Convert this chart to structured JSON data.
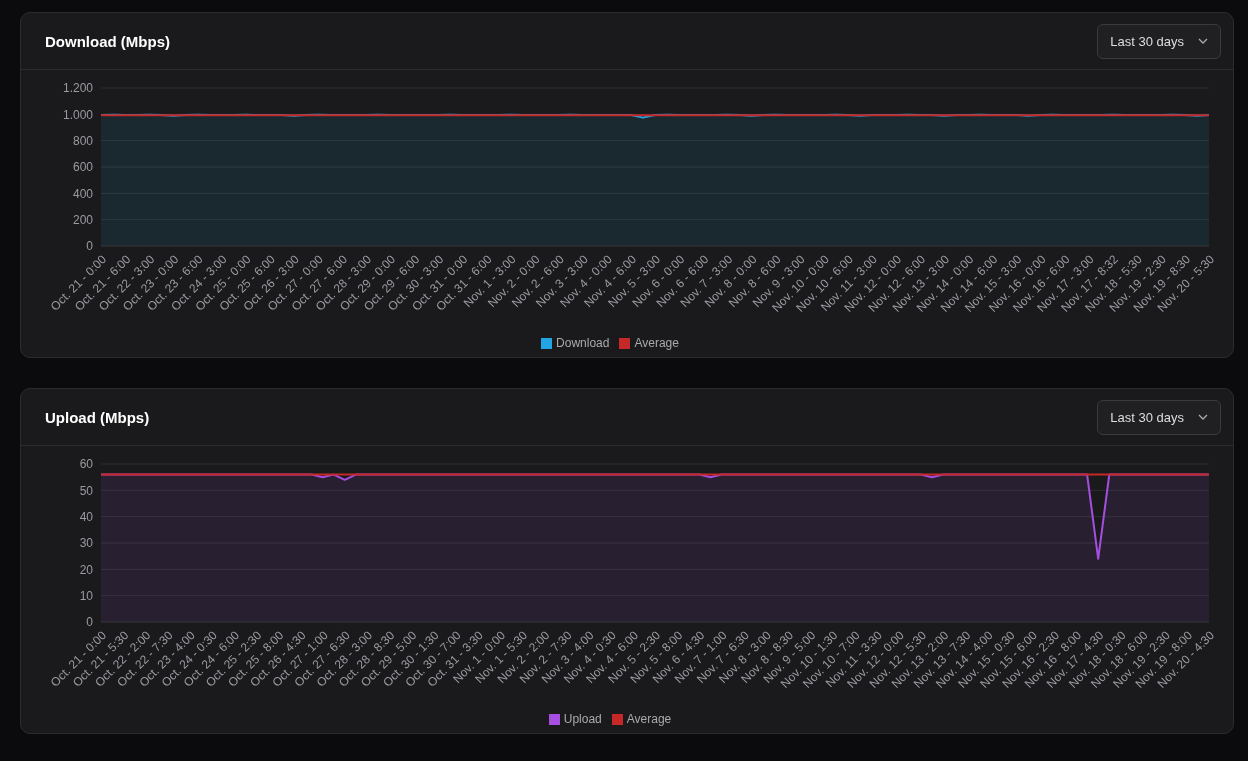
{
  "chart_data": [
    {
      "type": "line",
      "title": "Download (Mbps)",
      "annotations": [
        "Last 30 days"
      ],
      "categories": [
        "Oct. 21 - 0:00",
        null,
        "Oct. 21 - 6:00",
        null,
        "Oct. 22 - 3:00",
        null,
        "Oct. 23 - 0:00",
        null,
        "Oct. 23 - 6:00",
        null,
        "Oct. 24 - 3:00",
        null,
        "Oct. 25 - 0:00",
        null,
        "Oct. 25 - 6:00",
        null,
        "Oct. 26 - 3:00",
        null,
        "Oct. 27 - 0:00",
        null,
        "Oct. 27 - 6:00",
        null,
        "Oct. 28 - 3:00",
        null,
        "Oct. 29 - 0:00",
        null,
        "Oct. 29 - 6:00",
        null,
        "Oct. 30 - 3:00",
        null,
        "Oct. 31 - 0:00",
        null,
        "Oct. 31 - 6:00",
        null,
        "Nov. 1 - 3:00",
        null,
        "Nov. 2 - 0:00",
        null,
        "Nov. 2 - 6:00",
        null,
        "Nov. 3 - 3:00",
        null,
        "Nov. 4 - 0:00",
        null,
        "Nov. 4 - 6:00",
        null,
        "Nov. 5 - 3:00",
        null,
        "Nov. 6 - 0:00",
        null,
        "Nov. 6 - 6:00",
        null,
        "Nov. 7 - 3:00",
        null,
        "Nov. 8 - 0:00",
        null,
        "Nov. 8 - 6:00",
        null,
        "Nov. 9 - 3:00",
        null,
        "Nov. 10 - 0:00",
        null,
        "Nov. 10 - 6:00",
        null,
        "Nov. 11 - 3:00",
        null,
        "Nov. 12 - 0:00",
        null,
        "Nov. 12 - 6:00",
        null,
        "Nov. 13 - 3:00",
        null,
        "Nov. 14 - 0:00",
        null,
        "Nov. 14 - 6:00",
        null,
        "Nov. 15 - 3:00",
        null,
        "Nov. 16 - 0:00",
        null,
        "Nov. 16 - 6:00",
        null,
        "Nov. 17 - 3:00",
        null,
        "Nov. 17 - 8:32",
        null,
        "Nov. 18 - 5:30",
        null,
        "Nov. 19 - 2:30",
        null,
        "Nov. 19 - 8:30",
        null,
        "Nov. 20 - 5:30"
      ],
      "series": [
        {
          "name": "Download",
          "type": "area",
          "color": "#22a6e3",
          "values": [
            995,
            996,
            994,
            995,
            996,
            995,
            990,
            995,
            996,
            995,
            995,
            994,
            996,
            995,
            995,
            995,
            990,
            995,
            996,
            995,
            995,
            994,
            995,
            996,
            995,
            995,
            994,
            995,
            995,
            996,
            995,
            994,
            995,
            995,
            996,
            995,
            995,
            994,
            995,
            996,
            995,
            995,
            994,
            995,
            995,
            975,
            995,
            996,
            995,
            995,
            994,
            995,
            996,
            995,
            990,
            995,
            996,
            995,
            994,
            995,
            995,
            996,
            995,
            990,
            995,
            995,
            994,
            996,
            995,
            995,
            990,
            995,
            995,
            996,
            994,
            995,
            995,
            990,
            995,
            996,
            995,
            995,
            994,
            995,
            996,
            995,
            995,
            994,
            995,
            996,
            995,
            990,
            995
          ]
        },
        {
          "name": "Average",
          "color": "#c62828",
          "values": [
            993,
            993,
            993,
            993,
            993,
            993,
            993,
            993,
            993,
            993,
            993,
            993,
            993,
            993,
            993,
            993,
            993,
            993,
            993,
            993,
            993,
            993,
            993,
            993,
            993,
            993,
            993,
            993,
            993,
            993,
            993,
            993,
            993,
            993,
            993,
            993,
            993,
            993,
            993,
            993,
            993,
            993,
            993,
            993,
            993,
            993,
            993,
            993,
            993,
            993,
            993,
            993,
            993,
            993,
            993,
            993,
            993,
            993,
            993,
            993,
            993,
            993,
            993,
            993,
            993,
            993,
            993,
            993,
            993,
            993,
            993,
            993,
            993,
            993,
            993,
            993,
            993,
            993,
            993,
            993,
            993,
            993,
            993,
            993,
            993,
            993,
            993,
            993,
            993,
            993,
            993,
            993,
            993
          ]
        }
      ],
      "ylim": [
        0,
        1200
      ],
      "yticks": [
        0,
        200,
        400,
        600,
        800,
        {
          "value": 1000,
          "label": "1.000"
        },
        {
          "value": 1200,
          "label": "1.200"
        }
      ],
      "grid": "y",
      "legend": "bottom",
      "marker": "none"
    },
    {
      "type": "line",
      "title": "Upload (Mbps)",
      "annotations": [
        "Last 30 days"
      ],
      "categories": [
        "Oct. 21 - 0:00",
        null,
        "Oct. 21 - 5:30",
        null,
        "Oct. 22 - 2:00",
        null,
        "Oct. 22 - 7:30",
        null,
        "Oct. 23 - 4:00",
        null,
        "Oct. 24 - 0:30",
        null,
        "Oct. 24 - 6:00",
        null,
        "Oct. 25 - 2:30",
        null,
        "Oct. 25 - 8:00",
        null,
        "Oct. 26 - 4:30",
        null,
        "Oct. 27 - 1:00",
        null,
        "Oct. 27 - 6:30",
        null,
        "Oct. 28 - 3:00",
        null,
        "Oct. 28 - 8:30",
        null,
        "Oct. 29 - 5:00",
        null,
        "Oct. 30 - 1:30",
        null,
        "Oct. 30 - 7:00",
        null,
        "Oct. 31 - 3:30",
        null,
        "Nov. 1 - 0:00",
        null,
        "Nov. 1 - 5:30",
        null,
        "Nov. 2 - 2:00",
        null,
        "Nov. 2 - 7:30",
        null,
        "Nov. 3 - 4:00",
        null,
        "Nov. 4 - 0:30",
        null,
        "Nov. 4 - 6:00",
        null,
        "Nov. 5 - 2:30",
        null,
        "Nov. 5 - 8:00",
        null,
        "Nov. 6 - 4:30",
        null,
        "Nov. 7 - 1:00",
        null,
        "Nov. 7 - 6:30",
        null,
        "Nov. 8 - 3:00",
        null,
        "Nov. 8 - 8:30",
        null,
        "Nov. 9 - 5:00",
        null,
        "Nov. 10 - 1:30",
        null,
        "Nov. 10 - 7:00",
        null,
        "Nov. 11 - 3:30",
        null,
        "Nov. 12 - 0:00",
        null,
        "Nov. 12 - 5:30",
        null,
        "Nov. 13 - 2:00",
        null,
        "Nov. 13 - 7:30",
        null,
        "Nov. 14 - 4:00",
        null,
        "Nov. 15 - 0:30",
        null,
        "Nov. 15 - 6:00",
        null,
        "Nov. 16 - 2:30",
        null,
        "Nov. 16 - 8:00",
        null,
        "Nov. 17 - 4:30",
        null,
        "Nov. 18 - 0:30",
        null,
        "Nov. 18 - 6:00",
        null,
        "Nov. 19 - 2:30",
        null,
        "Nov. 19 - 8:00",
        null,
        "Nov. 20 - 4:30"
      ],
      "series": [
        {
          "name": "Upload",
          "type": "area",
          "color": "#a64ee0",
          "values": [
            56,
            56,
            56,
            56,
            56,
            56,
            56,
            56,
            56,
            56,
            56,
            56,
            56,
            56,
            56,
            56,
            56,
            56,
            56,
            56,
            55,
            56,
            54,
            56,
            56,
            56,
            56,
            56,
            56,
            56,
            56,
            56,
            56,
            56,
            56,
            56,
            56,
            56,
            56,
            56,
            56,
            56,
            56,
            56,
            56,
            56,
            56,
            56,
            56,
            56,
            56,
            56,
            56,
            56,
            56,
            55,
            56,
            56,
            56,
            56,
            56,
            56,
            56,
            56,
            56,
            56,
            56,
            56,
            56,
            56,
            56,
            56,
            56,
            56,
            56,
            55,
            56,
            56,
            56,
            56,
            56,
            56,
            56,
            56,
            56,
            56,
            56,
            56,
            56,
            56,
            24,
            56,
            56,
            56,
            56,
            56,
            56,
            56,
            56,
            56,
            56
          ]
        },
        {
          "name": "Average",
          "color": "#c62828",
          "values": [
            56,
            56,
            56,
            56,
            56,
            56,
            56,
            56,
            56,
            56,
            56,
            56,
            56,
            56,
            56,
            56,
            56,
            56,
            56,
            56,
            56,
            56,
            56,
            56,
            56,
            56,
            56,
            56,
            56,
            56,
            56,
            56,
            56,
            56,
            56,
            56,
            56,
            56,
            56,
            56,
            56,
            56,
            56,
            56,
            56,
            56,
            56,
            56,
            56,
            56,
            56,
            56,
            56,
            56,
            56,
            56,
            56,
            56,
            56,
            56,
            56,
            56,
            56,
            56,
            56,
            56,
            56,
            56,
            56,
            56,
            56,
            56,
            56,
            56,
            56,
            56,
            56,
            56,
            56,
            56,
            56,
            56,
            56,
            56,
            56,
            56,
            56,
            56,
            56,
            56,
            56,
            56,
            56,
            56,
            56,
            56,
            56,
            56,
            56,
            56,
            56
          ]
        }
      ],
      "ylim": [
        0,
        60
      ],
      "yticks": [
        0,
        10,
        20,
        30,
        40,
        50,
        60
      ],
      "grid": "y",
      "legend": "bottom",
      "marker": "none"
    }
  ]
}
